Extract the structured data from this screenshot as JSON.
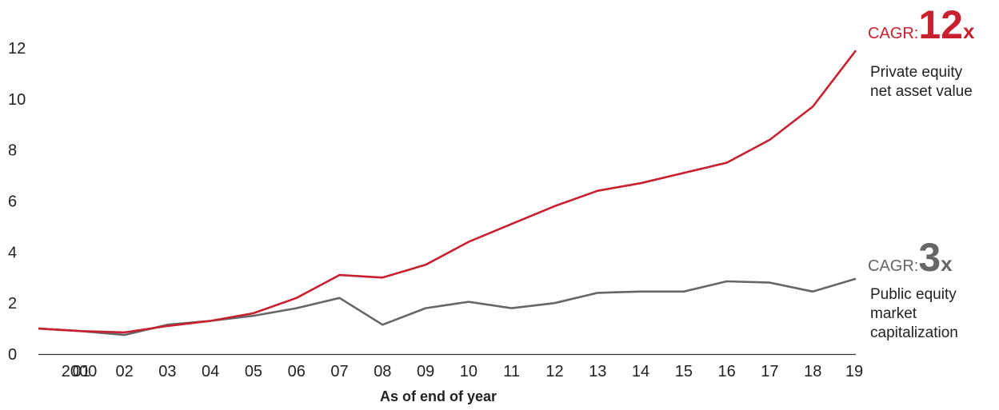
{
  "chart_data": {
    "type": "line",
    "xlabel": "As of end of year",
    "ylabel": "",
    "ylim": [
      0,
      12
    ],
    "y_ticks": [
      "0",
      "2",
      "4",
      "6",
      "8",
      "10",
      "12"
    ],
    "categories": [
      "2000",
      "01",
      "02",
      "03",
      "04",
      "05",
      "06",
      "07",
      "08",
      "09",
      "10",
      "11",
      "12",
      "13",
      "14",
      "15",
      "16",
      "17",
      "18",
      "19"
    ],
    "series": [
      {
        "name": "Private equity net asset value",
        "color": "#c8202f",
        "values": [
          1.0,
          0.9,
          0.85,
          1.1,
          1.3,
          1.6,
          2.2,
          3.1,
          3.0,
          3.5,
          4.4,
          5.1,
          5.8,
          6.4,
          6.7,
          7.1,
          7.5,
          8.4,
          9.7,
          11.9
        ]
      },
      {
        "name": "Public equity market capitalization",
        "color": "#666666",
        "values": [
          1.0,
          0.9,
          0.75,
          1.15,
          1.3,
          1.5,
          1.8,
          2.2,
          1.15,
          1.8,
          2.05,
          1.8,
          2.0,
          2.4,
          2.45,
          2.45,
          2.85,
          2.8,
          2.45,
          2.95
        ]
      }
    ]
  },
  "annotations": {
    "pe": {
      "prefix": "CAGR:",
      "value": "12",
      "suffix": "x",
      "label_line1": "Private equity",
      "label_line2": "net asset value"
    },
    "public": {
      "prefix": "CAGR:",
      "value": "3",
      "suffix": "x",
      "label_line1": "Public equity",
      "label_line2": "market",
      "label_line3": "capitalization"
    }
  }
}
